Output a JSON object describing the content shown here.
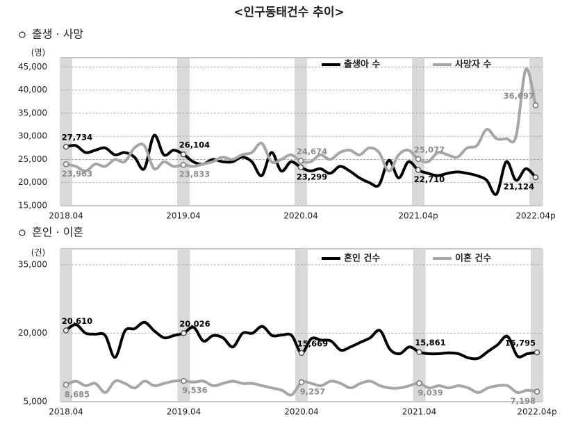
{
  "title": "<인구동태건수 추이>",
  "chart_data": [
    {
      "type": "line",
      "title": "출생 · 사망",
      "y_label": "(명)",
      "categories": [
        "2018.04",
        null,
        null,
        null,
        null,
        null,
        null,
        null,
        null,
        null,
        null,
        null,
        "2019.04",
        null,
        null,
        null,
        null,
        null,
        null,
        null,
        null,
        null,
        null,
        null,
        "2020.04",
        null,
        null,
        null,
        null,
        null,
        null,
        null,
        null,
        null,
        null,
        null,
        "2021.04p",
        null,
        null,
        null,
        null,
        null,
        null,
        null,
        null,
        null,
        null,
        null,
        "2022.04p"
      ],
      "series": [
        {
          "name": "출생아 수",
          "color": "#000000",
          "values": [
            27734,
            28000,
            26500,
            27000,
            27500,
            26000,
            26500,
            25500,
            23000,
            30200,
            26000,
            27000,
            26104,
            24500,
            24000,
            25000,
            24500,
            24500,
            25500,
            24500,
            21500,
            26500,
            22500,
            24500,
            23299,
            22500,
            23000,
            22000,
            23500,
            22500,
            21000,
            20000,
            19500,
            24800,
            21000,
            24500,
            22710,
            22000,
            21500,
            22000,
            22300,
            22000,
            21500,
            20500,
            17500,
            24500,
            20500,
            23000,
            21124
          ],
          "value_labels": [
            "27,734",
            null,
            null,
            null,
            null,
            null,
            null,
            null,
            null,
            null,
            null,
            null,
            "26,104",
            null,
            null,
            null,
            null,
            null,
            null,
            null,
            null,
            null,
            null,
            null,
            "23,299",
            null,
            null,
            null,
            null,
            null,
            null,
            null,
            null,
            null,
            null,
            null,
            "22,710",
            null,
            null,
            null,
            null,
            null,
            null,
            null,
            null,
            null,
            null,
            null,
            "21,124"
          ]
        },
        {
          "name": "사망자 수",
          "color": "#a6a6a6",
          "values": [
            23963,
            23500,
            22500,
            24000,
            23500,
            25000,
            24500,
            27500,
            28000,
            23000,
            24500,
            23500,
            23833,
            23500,
            24000,
            24500,
            25500,
            25000,
            26000,
            26500,
            28500,
            24500,
            25000,
            26000,
            24674,
            24500,
            26000,
            25000,
            26500,
            27000,
            26000,
            27500,
            26500,
            22500,
            26000,
            27000,
            25077,
            24500,
            26500,
            26000,
            25500,
            27500,
            28000,
            31500,
            29500,
            29500,
            30000,
            44500,
            36697
          ],
          "value_labels": [
            "23,963",
            null,
            null,
            null,
            null,
            null,
            null,
            null,
            null,
            null,
            null,
            null,
            "23,833",
            null,
            null,
            null,
            null,
            null,
            null,
            null,
            null,
            null,
            null,
            null,
            "24,674",
            null,
            null,
            null,
            null,
            null,
            null,
            null,
            null,
            null,
            null,
            null,
            "25,077",
            null,
            null,
            null,
            null,
            null,
            null,
            null,
            null,
            null,
            null,
            null,
            "36,697"
          ]
        }
      ],
      "ylim": [
        15000,
        47000
      ],
      "yticks": [
        {
          "value": 15000,
          "label": "15,000"
        },
        {
          "value": 20000,
          "label": "20,000"
        },
        {
          "value": 25000,
          "label": "25,000"
        },
        {
          "value": 30000,
          "label": "30,000"
        },
        {
          "value": 35000,
          "label": "35,000"
        },
        {
          "value": 40000,
          "label": "40,000"
        },
        {
          "value": 45000,
          "label": "45,000"
        }
      ],
      "grid": true,
      "legend": "top-right"
    },
    {
      "type": "line",
      "title": "혼인 · 이혼",
      "y_label": "(건)",
      "categories": [
        "2018.04",
        null,
        null,
        null,
        null,
        null,
        null,
        null,
        null,
        null,
        null,
        null,
        "2019.04",
        null,
        null,
        null,
        null,
        null,
        null,
        null,
        null,
        null,
        null,
        null,
        "2020.04",
        null,
        null,
        null,
        null,
        null,
        null,
        null,
        null,
        null,
        null,
        null,
        "2021.04",
        null,
        null,
        null,
        null,
        null,
        null,
        null,
        null,
        null,
        null,
        null,
        "2022.04p"
      ],
      "series": [
        {
          "name": "혼인 건수",
          "color": "#000000",
          "values": [
            20610,
            21900,
            20000,
            19800,
            19500,
            14700,
            20500,
            21000,
            22400,
            20500,
            19000,
            19500,
            20026,
            21300,
            18300,
            19500,
            19000,
            17000,
            20000,
            20000,
            21500,
            19500,
            19600,
            19500,
            15669,
            18800,
            18500,
            18300,
            16300,
            17000,
            18000,
            19000,
            20600,
            16500,
            15500,
            17000,
            15861,
            15500,
            15500,
            15700,
            15500,
            14600,
            14500,
            16000,
            17500,
            19300,
            15000,
            15500,
            15795
          ],
          "value_labels": [
            "20,610",
            null,
            null,
            null,
            null,
            null,
            null,
            null,
            null,
            null,
            null,
            null,
            "20,026",
            null,
            null,
            null,
            null,
            null,
            null,
            null,
            null,
            null,
            null,
            null,
            "15,669",
            null,
            null,
            null,
            null,
            null,
            null,
            null,
            null,
            null,
            null,
            null,
            "15,861",
            null,
            null,
            null,
            null,
            null,
            null,
            null,
            null,
            null,
            null,
            null,
            "15,795"
          ]
        },
        {
          "name": "이혼 건수",
          "color": "#a6a6a6",
          "values": [
            8685,
            9500,
            8500,
            9000,
            7000,
            9500,
            9000,
            8000,
            9500,
            8500,
            9000,
            9500,
            9536,
            9300,
            9500,
            8500,
            9000,
            9500,
            9000,
            9000,
            8500,
            8000,
            7500,
            6500,
            9257,
            9000,
            8500,
            9500,
            9000,
            8000,
            9000,
            9500,
            8500,
            8000,
            8000,
            8500,
            9039,
            8000,
            8500,
            8000,
            8500,
            8000,
            7000,
            8000,
            8500,
            8500,
            7000,
            7500,
            7198
          ],
          "value_labels": [
            "8,685",
            null,
            null,
            null,
            null,
            null,
            null,
            null,
            null,
            null,
            null,
            null,
            "9,536",
            null,
            null,
            null,
            null,
            null,
            null,
            null,
            null,
            null,
            null,
            null,
            "9,257",
            null,
            null,
            null,
            null,
            null,
            null,
            null,
            null,
            null,
            null,
            null,
            "9,039",
            null,
            null,
            null,
            null,
            null,
            null,
            null,
            null,
            null,
            null,
            null,
            "7,198"
          ]
        }
      ],
      "ylim": [
        5000,
        38500
      ],
      "yticks": [
        {
          "value": 5000,
          "label": "5,000"
        },
        {
          "value": 20000,
          "label": "20,000"
        },
        {
          "value": 35000,
          "label": "35,000"
        }
      ],
      "grid": true,
      "legend": "top-right"
    }
  ]
}
